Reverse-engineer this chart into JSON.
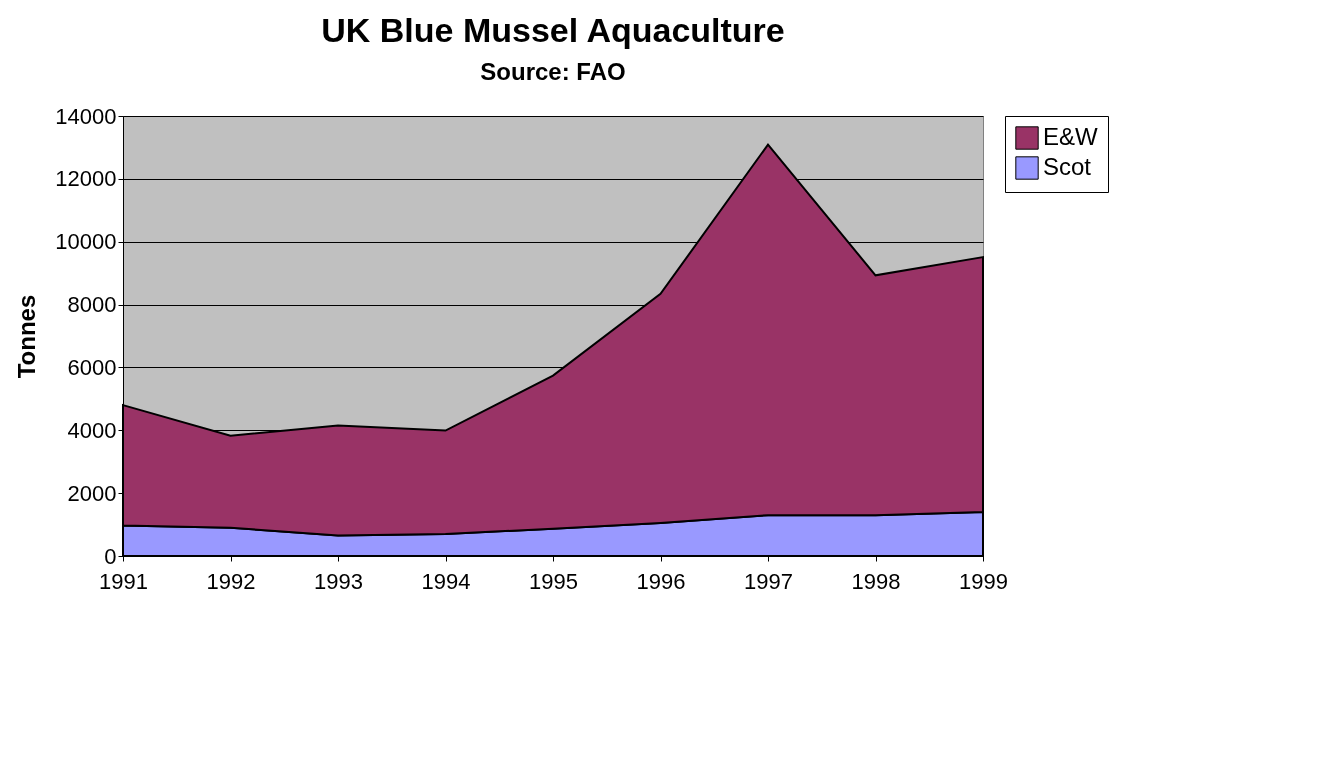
{
  "chart_data": {
    "type": "area",
    "title": "UK Blue Mussel Aquaculture",
    "subtitle": "Source: FAO",
    "ylabel": "Tonnes",
    "categories": [
      "1991",
      "1992",
      "1993",
      "1994",
      "1995",
      "1996",
      "1997",
      "1998",
      "1999"
    ],
    "stacked": true,
    "series": [
      {
        "name": "Scot",
        "color": "#9999ff",
        "values": [
          970,
          900,
          650,
          700,
          870,
          1050,
          1300,
          1300,
          1400
        ]
      },
      {
        "name": "E&W",
        "color": "#993366",
        "values": [
          3830,
          2930,
          3500,
          3290,
          4870,
          7290,
          11790,
          7630,
          8110
        ]
      }
    ],
    "ylim": [
      0,
      14000
    ],
    "yticks": [
      0,
      2000,
      4000,
      6000,
      8000,
      10000,
      12000,
      14000
    ],
    "grid": "y",
    "legend": "right"
  }
}
